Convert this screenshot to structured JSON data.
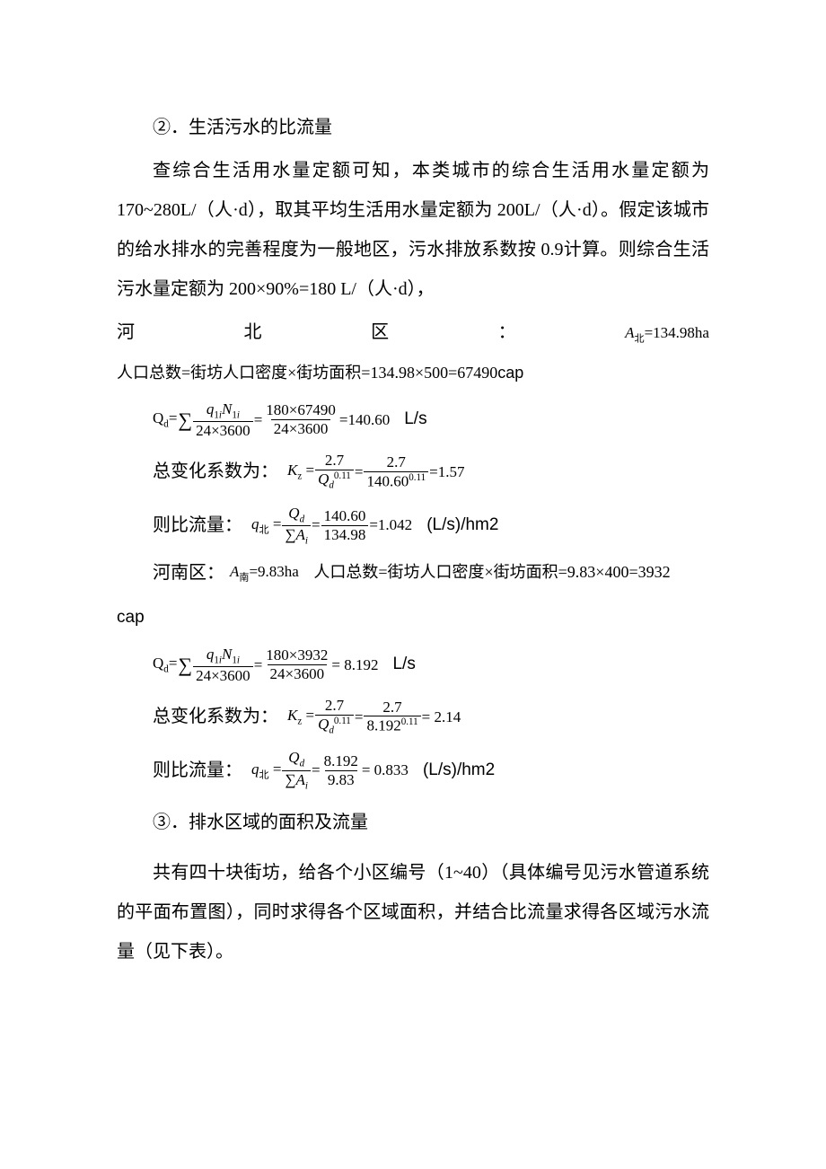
{
  "colors": {
    "text": "#000000",
    "background": "#ffffff"
  },
  "typography": {
    "body_fontsize": 20,
    "formula_fontsize": 17,
    "line_height": 2.2
  },
  "sec2": {
    "heading": "②．生活污水的比流量",
    "p1": "查综合生活用水量定额可知，本类城市的综合生活用水量定额为170~280L/（人·d），取其平均生活用水量定额为 200L/（人·d）。假定该城市的给水排水的完善程度为一般地区，污水排放系数按 0.9计算。则综合生活污水量定额为 200×90%=180 L/（人·d），"
  },
  "north": {
    "label_chars": {
      "a": "河",
      "b": "北",
      "c": "区",
      "d": "："
    },
    "area_html": "<span class=\"italic\">A</span><span class=\"sub\">北</span>=134.98ha",
    "pop_line_prefix": "人口总数=街坊人口密度×街坊面积=134.98×500=67490",
    "pop_unit": "cap",
    "Qd": {
      "lhs_html": "Q<span class=\"sub\">d</span>=",
      "sum": "∑",
      "f1_num_html": "<span class=\"italic\">q</span><span class=\"sub\">1<i>i</i></span><span class=\"italic\">N</span><span class=\"sub\">1<i>i</i></span>",
      "f1_den": "24×3600",
      "f2_num": "180×67490",
      "f2_den": "24×3600",
      "result": "=140.60",
      "unit": "L/s"
    },
    "Kz": {
      "prefix": "总变化系数为：",
      "lhs_html": "<span class=\"italic\">K</span><span class=\"sub\">z</span> =",
      "f1_num": "2.7",
      "f1_den_html": "<span class=\"italic\">Q<span class=\"sub\">d</span></span><span class=\"sup\">0.11</span>",
      "f2_num": "2.7",
      "f2_den_html": "140.60<span class=\"sup\">0.11</span>",
      "result": "=1.57"
    },
    "qratio": {
      "prefix": "则比流量：",
      "lhs_html": "<span class=\"italic\">q</span><span class=\"sub\">北</span> =",
      "f1_num_html": "<span class=\"italic\">Q<span class=\"sub\">d</span></span>",
      "f1_den_html": "∑<span class=\"italic\">A<span class=\"sub\">i</span></span>",
      "f2_num": "140.60",
      "f2_den": "134.98",
      "result": "=1.042",
      "unit": "(L/s)/hm2"
    }
  },
  "south": {
    "intro_prefix": "河南区：",
    "area_html": "<span class=\"italic\">A</span><span class=\"sub\">南</span>=9.83ha",
    "pop_line": "人口总数=街坊人口密度×街坊面积=9.83×400=3932",
    "pop_unit": "cap",
    "Qd": {
      "lhs_html": "Q<span class=\"sub\">d</span>=",
      "sum": "∑",
      "f1_num_html": "<span class=\"italic\">q</span><span class=\"sub\">1<i>i</i></span><span class=\"italic\">N</span><span class=\"sub\">1<i>i</i></span>",
      "f1_den": "24×3600",
      "f2_num": "180×3932",
      "f2_den": "24×3600",
      "result": "= 8.192",
      "unit": "L/s"
    },
    "Kz": {
      "prefix": "总变化系数为：",
      "lhs_html": "<span class=\"italic\">K</span><span class=\"sub\">z</span> =",
      "f1_num": "2.7",
      "f1_den_html": "<span class=\"italic\">Q<span class=\"sub\">d</span></span><span class=\"sup\">0.11</span>",
      "f2_num": "2.7",
      "f2_den_html": "8.192<span class=\"sup\">0.11</span>",
      "result": "= 2.14"
    },
    "qratio": {
      "prefix": "则比流量：",
      "lhs_html": "<span class=\"italic\">q</span><span class=\"sub\">北</span> =",
      "f1_num_html": "<span class=\"italic\">Q<span class=\"sub\">d</span></span>",
      "f1_den_html": "∑<span class=\"italic\">A<span class=\"sub\">i</span></span>",
      "f2_num": "8.192",
      "f2_den": "9.83",
      "result": "= 0.833",
      "unit": "(L/s)/hm2"
    }
  },
  "sec3": {
    "heading": "③．排水区域的面积及流量",
    "p1": "共有四十块街坊，给各个小区编号（1~40）（具体编号见污水管道系统的平面布置图），同时求得各个区域面积，并结合比流量求得各区域污水流量（见下表）。"
  }
}
